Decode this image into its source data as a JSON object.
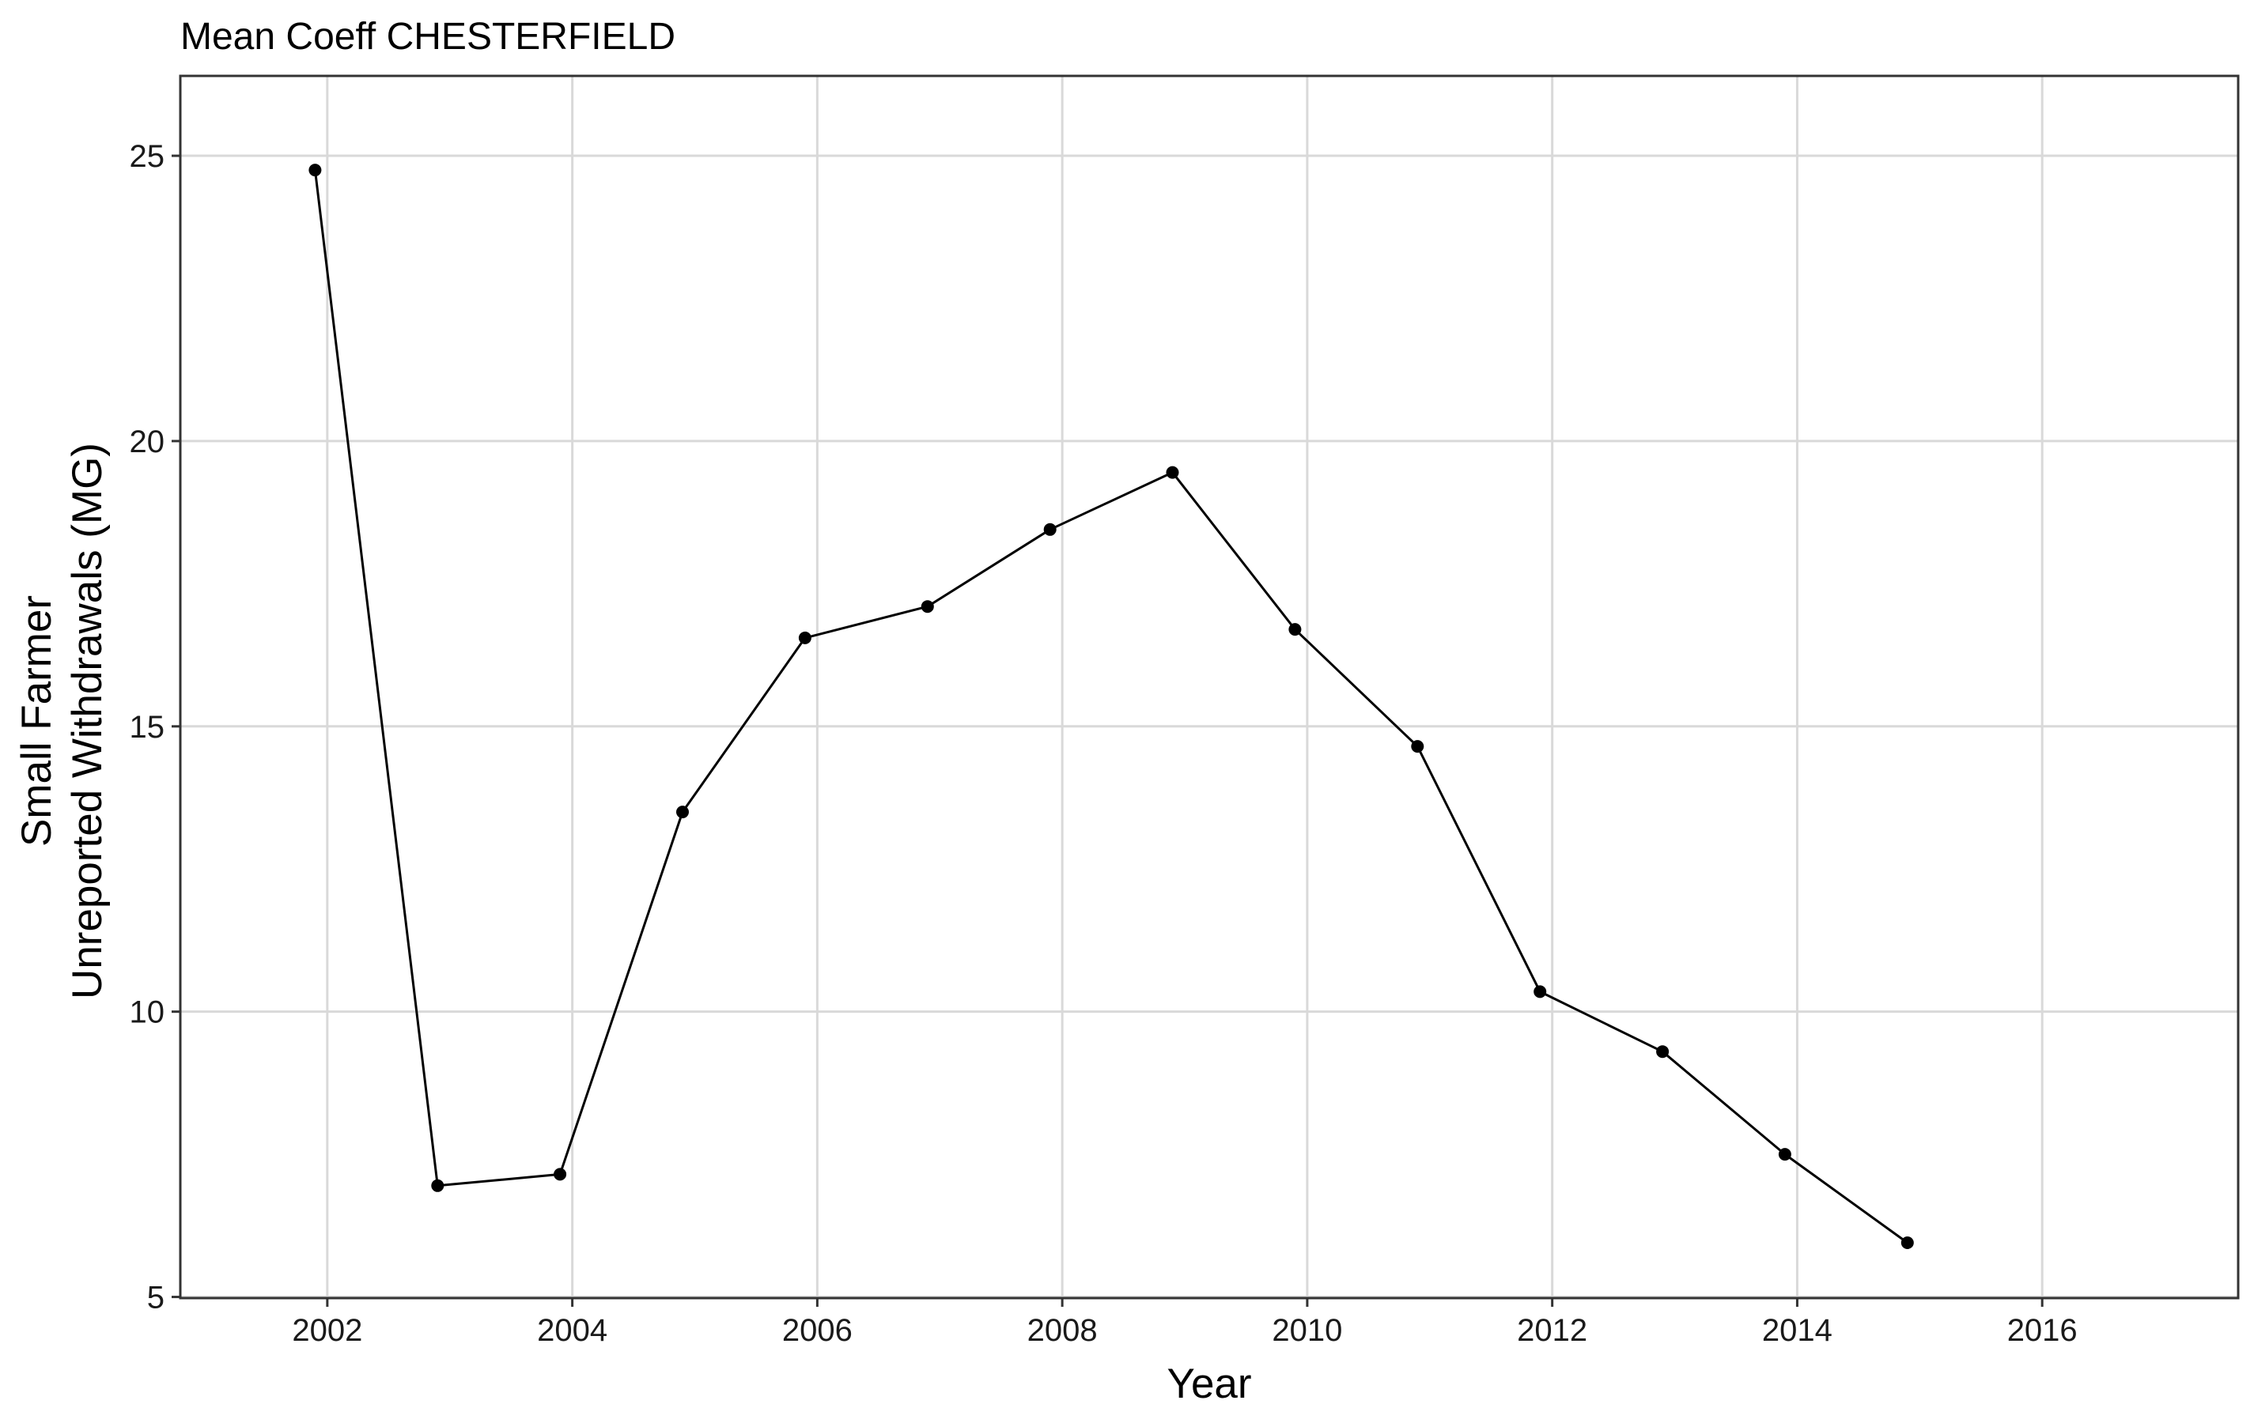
{
  "chart_data": {
    "type": "line",
    "title": "Mean Coeff CHESTERFIELD",
    "xlabel": "Year",
    "ylabel_lines": [
      "Small Farmer",
      "Unreported Withdrawals (MG)"
    ],
    "x": [
      2001.9,
      2002.9,
      2003.9,
      2004.9,
      2005.9,
      2006.9,
      2007.9,
      2008.9,
      2009.9,
      2010.9,
      2011.9,
      2012.9,
      2013.9,
      2014.9
    ],
    "y": [
      24.75,
      6.95,
      7.15,
      13.5,
      16.55,
      17.1,
      18.45,
      19.45,
      16.7,
      14.65,
      10.35,
      9.3,
      7.5,
      5.95
    ],
    "xlim": [
      2000.8,
      2017.6
    ],
    "ylim": [
      4.98,
      26.4
    ],
    "x_ticks": [
      2002,
      2004,
      2006,
      2008,
      2010,
      2012,
      2014,
      2016
    ],
    "x_tick_labels": [
      "2002",
      "2004",
      "2006",
      "2008",
      "2010",
      "2012",
      "2014",
      "2016"
    ],
    "y_ticks": [
      5,
      10,
      15,
      20,
      25
    ],
    "y_tick_labels": [
      "5",
      "10",
      "15",
      "20",
      "25"
    ],
    "grid": true,
    "legend": "none",
    "line_color": "#000000",
    "grid_color": "#d9d9d9"
  }
}
